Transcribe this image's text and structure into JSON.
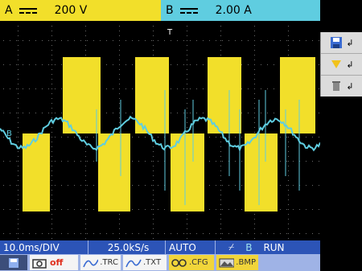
{
  "channels": {
    "a": {
      "label": "A",
      "coupling_icon": "dc-coupling-icon",
      "value": "200 V",
      "color": "#f2df2a"
    },
    "b": {
      "label": "B",
      "coupling_icon": "dc-coupling-icon",
      "value": "2.00 A",
      "color": "#5fcde0"
    }
  },
  "markers": {
    "trigger": "T",
    "channel_b_level": "B"
  },
  "status": {
    "timebase": "10.0ms/DIV",
    "sample_rate": "25.0kS/s",
    "trigger_mode": "AUTO",
    "trigger_channel": "B",
    "run_state": "RUN"
  },
  "side_menu": [
    {
      "icon": "save-icon"
    },
    {
      "icon": "load-icon"
    },
    {
      "icon": "delete-icon"
    }
  ],
  "bottom_bar": {
    "screenshot_state": "off",
    "trc_label": ".TRC",
    "txt_label": ".TXT",
    "cfg_label": ".CFG",
    "bmp_label": ".BMP"
  },
  "colors": {
    "grid": "#6a6a6a",
    "status_bar": "#2c54b7",
    "channel_a": "#f2df2a",
    "channel_b": "#5fcde0"
  }
}
